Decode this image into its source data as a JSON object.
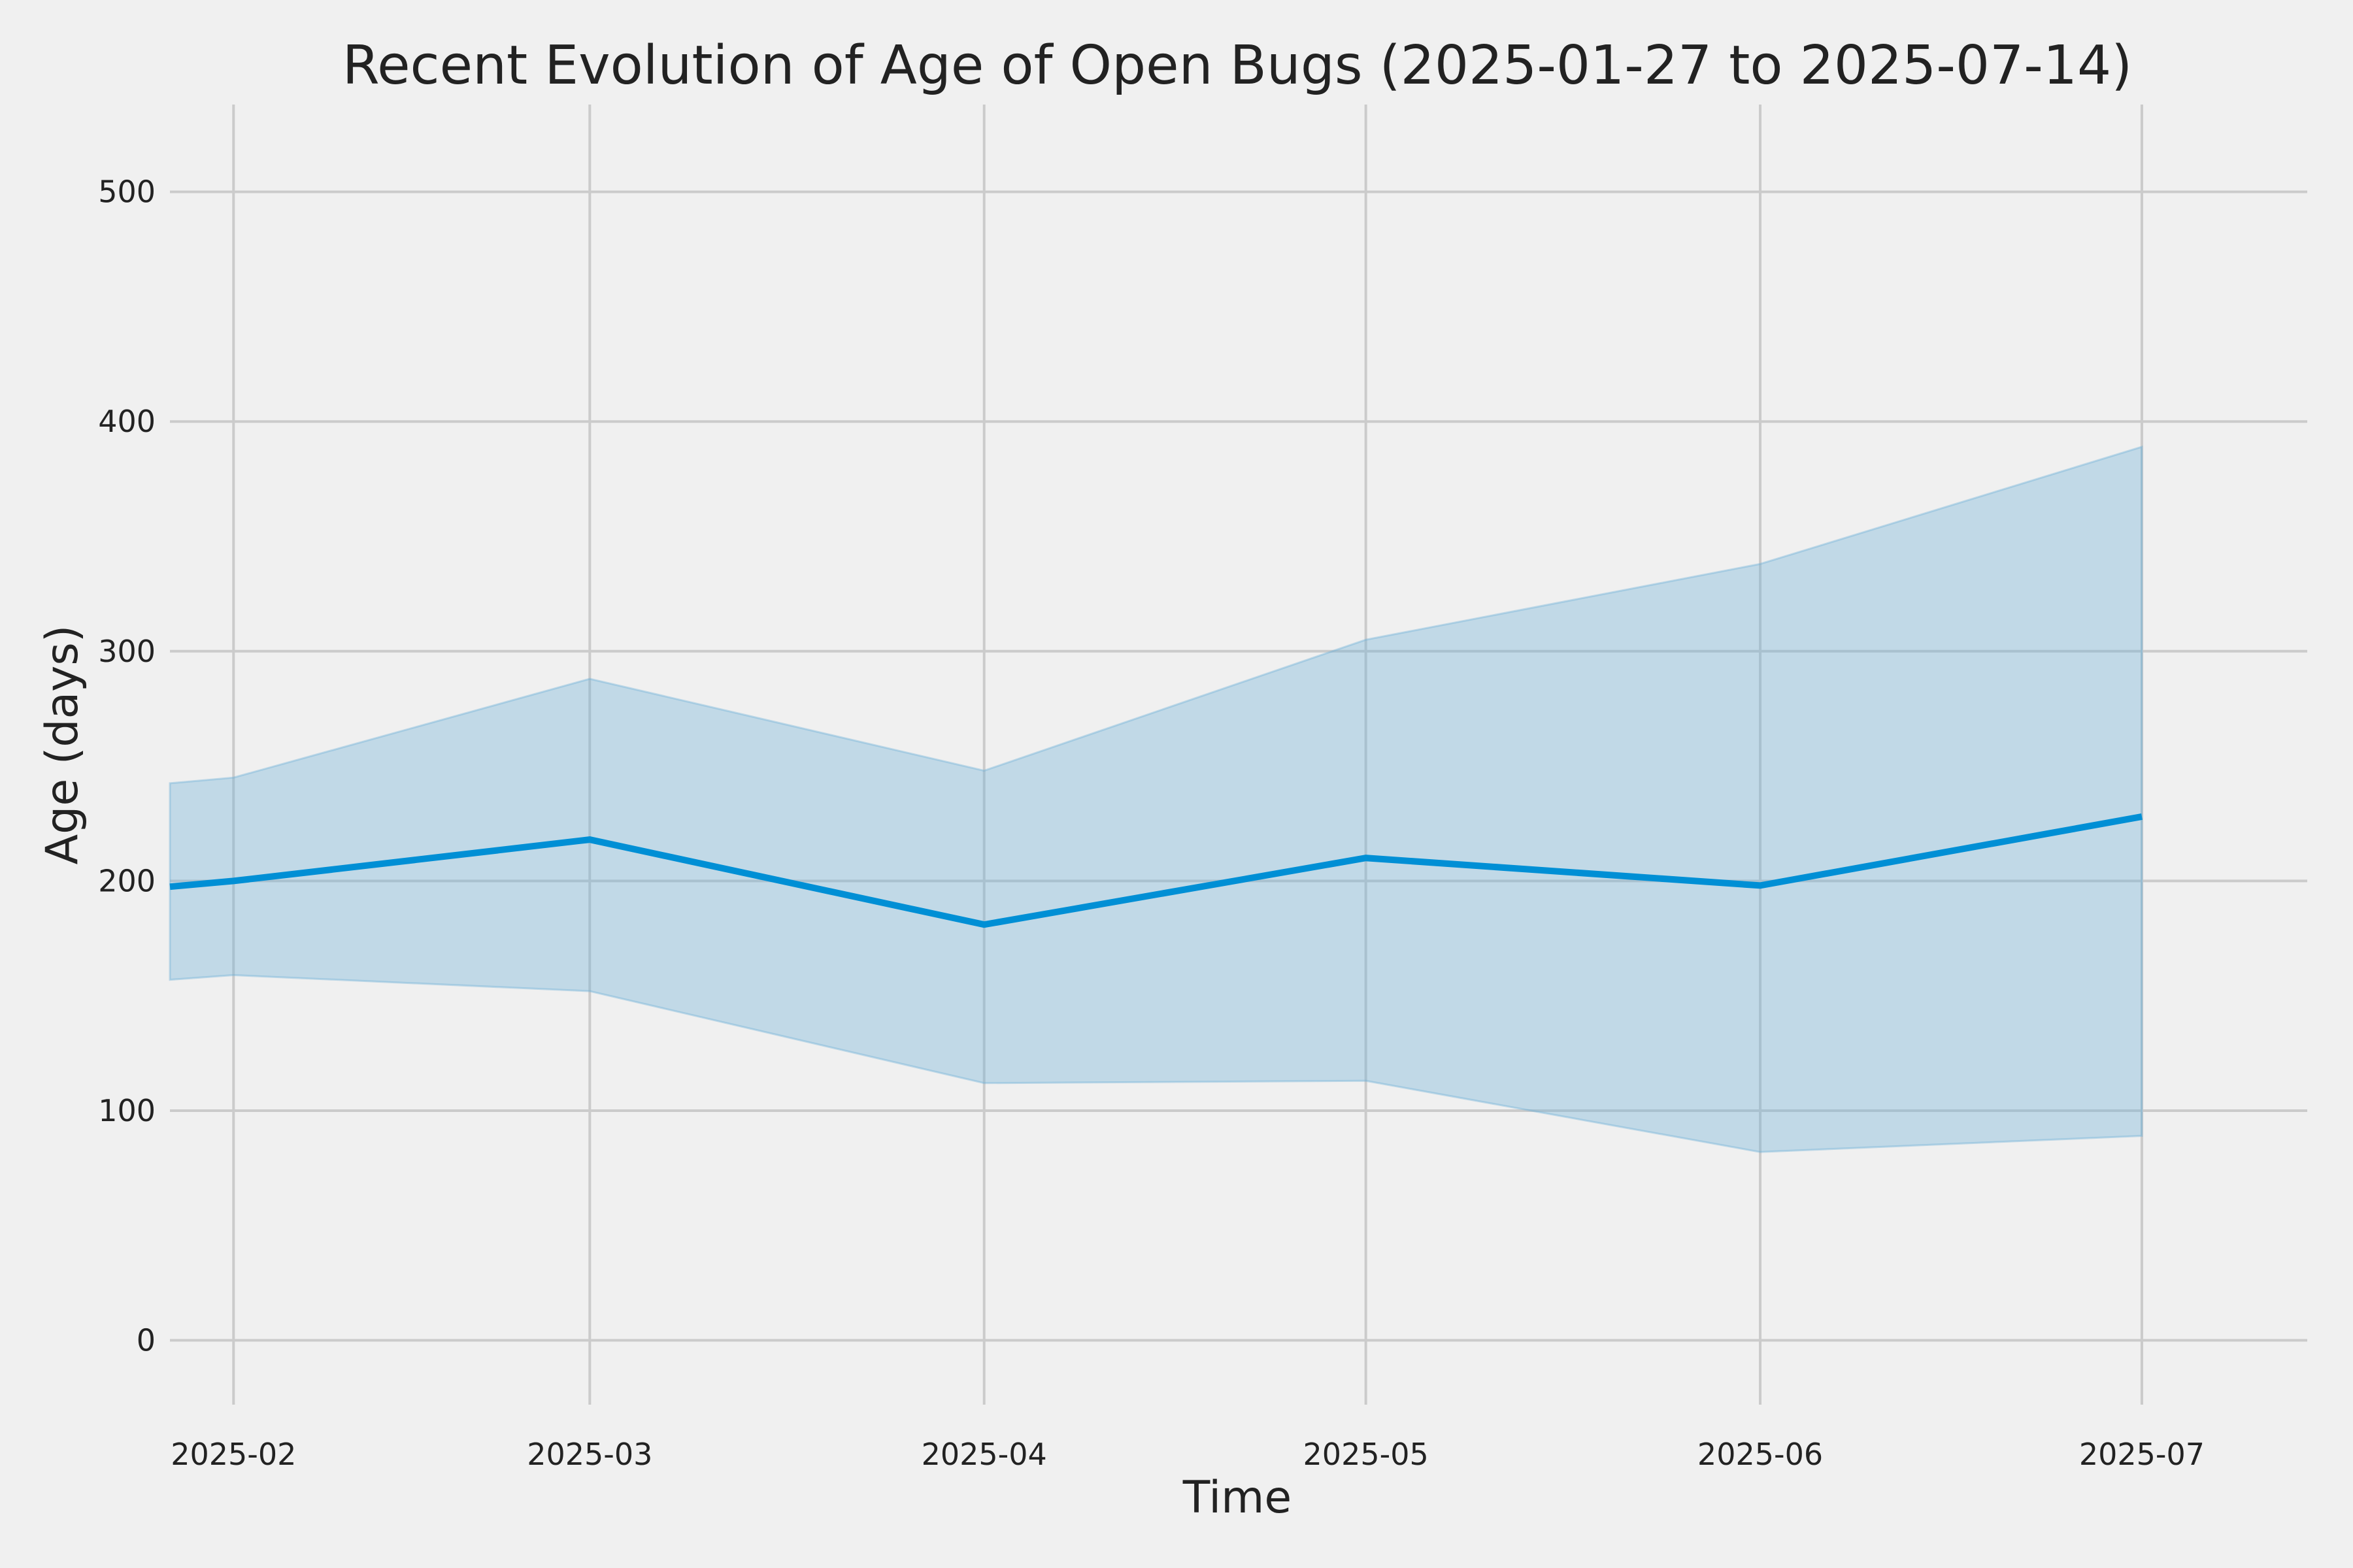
{
  "chart_data": {
    "type": "area",
    "title": "Recent Evolution of Age of Open Bugs (2025-01-27 to 2025-07-14)",
    "xlabel": "Time",
    "ylabel": "Age (days)",
    "xlim": [
      "2025-01-27",
      "2025-07-14"
    ],
    "ylim": [
      -28,
      538
    ],
    "grid": true,
    "x_ticks": [
      "2025-02",
      "2025-03",
      "2025-04",
      "2025-05",
      "2025-06",
      "2025-07"
    ],
    "y_ticks": [
      0,
      100,
      200,
      300,
      400,
      500
    ],
    "x": [
      "2025-01-22",
      "2025-02-01",
      "2025-03-01",
      "2025-04-01",
      "2025-05-01",
      "2025-06-01",
      "2025-07-01"
    ],
    "series": [
      {
        "values": [
          195,
          200,
          218,
          181,
          210,
          198,
          228
        ],
        "lower": [
          155,
          159,
          152,
          112,
          113,
          82,
          89
        ],
        "upper": [
          240,
          245,
          288,
          248,
          305,
          338,
          389
        ],
        "color": "#008fd5",
        "band_color": "#6baed6"
      }
    ]
  }
}
